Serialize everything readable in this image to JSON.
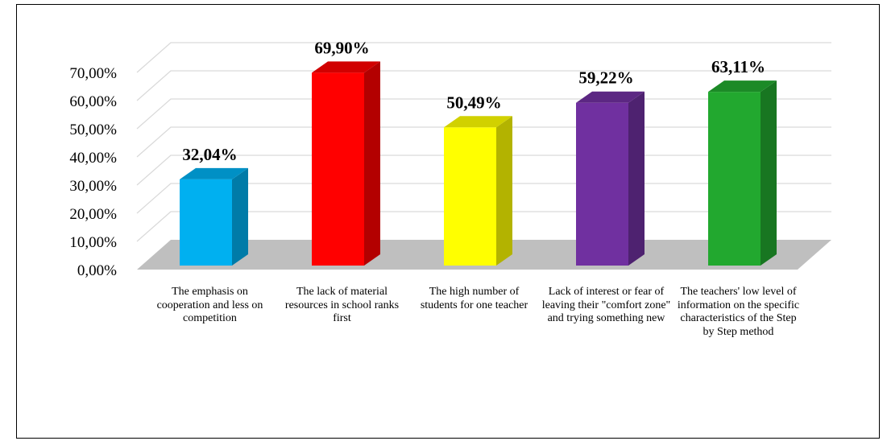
{
  "chart_data": {
    "type": "bar",
    "title": "",
    "xlabel": "",
    "ylabel": "",
    "ylim": [
      0,
      70
    ],
    "y_ticks": [
      "0,00%",
      "10,00%",
      "20,00%",
      "30,00%",
      "40,00%",
      "50,00%",
      "60,00%",
      "70,00%"
    ],
    "grid": true,
    "style": "3d-column",
    "categories": [
      "The emphasis on cooperation and less on competition",
      "The lack of material resources in school ranks first",
      "The high number of students for one teacher",
      "Lack of interest or fear of leaving their \"comfort zone\" and trying  something new",
      "The teachers' low level of information on the specific characteristics of the Step by Step method"
    ],
    "values": [
      32.04,
      69.9,
      50.49,
      59.22,
      63.11
    ],
    "data_labels": [
      "32,04%",
      "69,90%",
      "50,49%",
      "59,22%",
      "63,11%"
    ],
    "colors": [
      "#00B0F0",
      "#FF0000",
      "#FFFF00",
      "#7030A0",
      "#22A82F"
    ]
  }
}
